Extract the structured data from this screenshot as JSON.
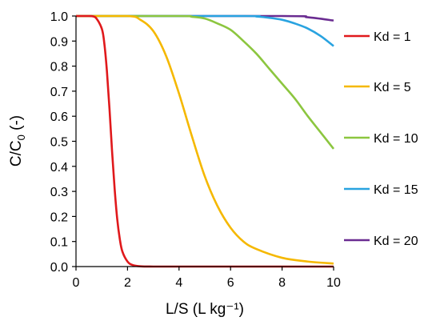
{
  "chart_data": {
    "type": "line",
    "xlabel": "L/S (L kg⁻¹)",
    "ylabel_main": "C/C",
    "ylabel_sub": "0",
    "ylabel_tail": " (-)",
    "xlim": [
      0,
      10
    ],
    "ylim": [
      0,
      1.0
    ],
    "x_ticks": [
      "0",
      "2",
      "4",
      "6",
      "8",
      "10"
    ],
    "y_ticks": [
      "0.0",
      "0.1",
      "0.2",
      "0.3",
      "0.4",
      "0.5",
      "0.6",
      "0.7",
      "0.8",
      "0.9",
      "1.0"
    ],
    "grid": false,
    "legend_position": "right",
    "series": [
      {
        "name": "Kd = 1",
        "color": "#e0191c",
        "x": [
          0,
          0.5,
          0.75,
          1.0,
          1.1,
          1.2,
          1.3,
          1.4,
          1.5,
          1.6,
          1.7,
          1.8,
          2.0,
          2.2,
          2.5,
          3.0,
          4.0,
          10.0
        ],
        "y": [
          1.0,
          1.0,
          0.995,
          0.95,
          0.89,
          0.78,
          0.63,
          0.46,
          0.31,
          0.19,
          0.11,
          0.06,
          0.02,
          0.006,
          0.001,
          0.0,
          0.0,
          0.0
        ]
      },
      {
        "name": "Kd = 5",
        "color": "#f5b800",
        "x": [
          0,
          2.0,
          2.5,
          3.0,
          3.5,
          4.0,
          4.5,
          5.0,
          5.5,
          6.0,
          6.5,
          7.0,
          8.0,
          9.0,
          10.0
        ],
        "y": [
          1.0,
          1.0,
          0.985,
          0.94,
          0.84,
          0.69,
          0.52,
          0.36,
          0.24,
          0.155,
          0.1,
          0.07,
          0.035,
          0.02,
          0.012
        ]
      },
      {
        "name": "Kd = 10",
        "color": "#8cc63f",
        "x": [
          0,
          4.0,
          4.5,
          5.0,
          5.5,
          6.0,
          6.5,
          7.0,
          7.5,
          8.0,
          8.5,
          9.0,
          9.5,
          10.0
        ],
        "y": [
          1.0,
          1.0,
          0.997,
          0.99,
          0.97,
          0.945,
          0.9,
          0.85,
          0.79,
          0.73,
          0.67,
          0.6,
          0.535,
          0.47
        ]
      },
      {
        "name": "Kd = 15",
        "color": "#29a3e0",
        "x": [
          0,
          6.5,
          7.0,
          7.5,
          8.0,
          8.5,
          9.0,
          9.5,
          10.0
        ],
        "y": [
          1.0,
          1.0,
          0.998,
          0.993,
          0.985,
          0.97,
          0.95,
          0.92,
          0.88
        ]
      },
      {
        "name": "Kd = 20",
        "color": "#6a2c91",
        "x": [
          0,
          8.0,
          9.0,
          10.0
        ],
        "y": [
          1.0,
          1.0,
          0.995,
          0.982
        ]
      }
    ]
  }
}
